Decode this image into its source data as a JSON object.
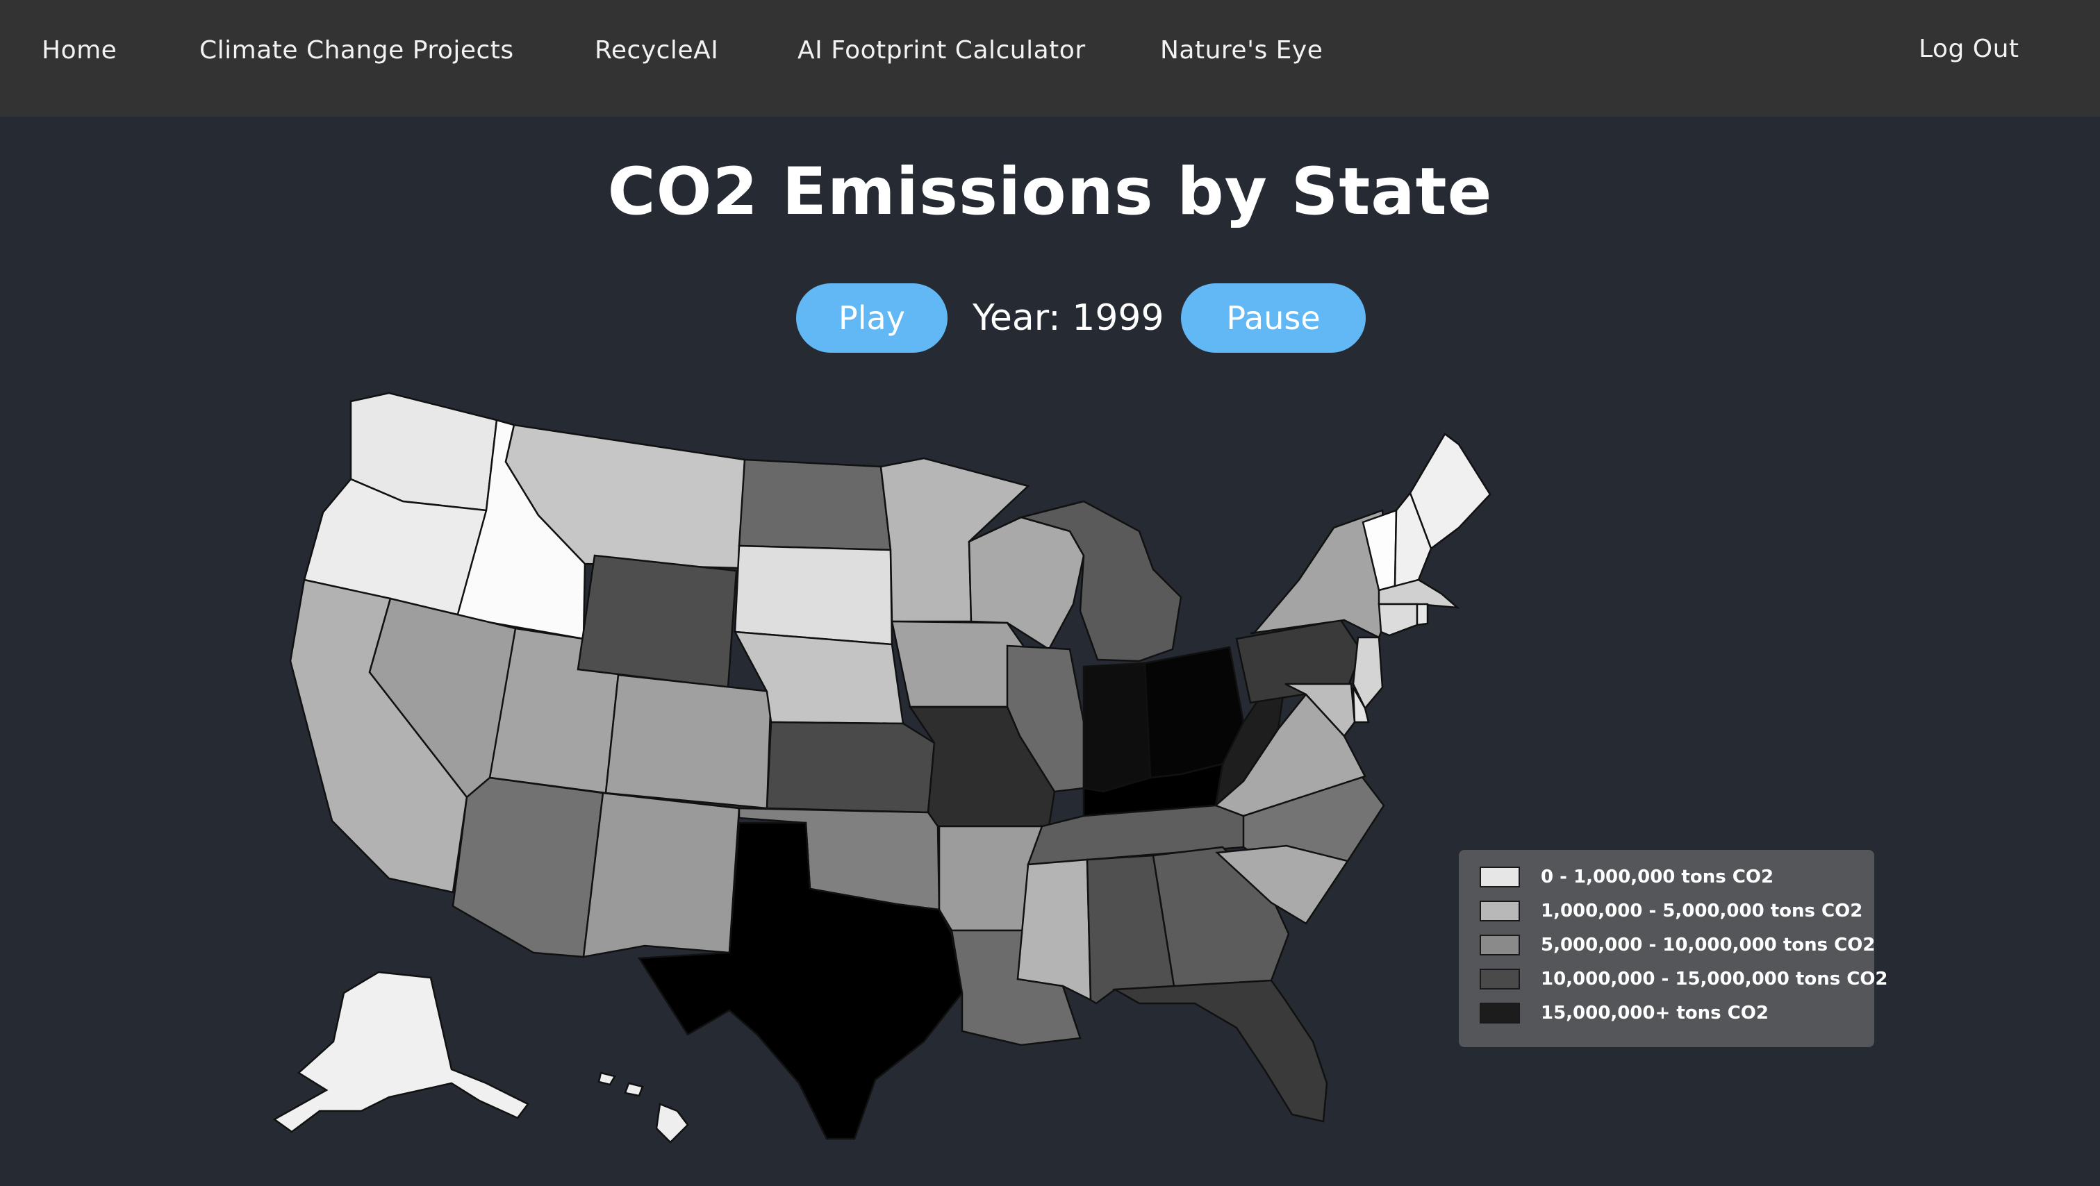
{
  "nav": {
    "home": "Home",
    "climate": "Climate Change Projects",
    "recycle": "RecycleAI",
    "footprint": "AI Footprint Calculator",
    "natures_eye": "Nature's Eye",
    "logout": "Log Out"
  },
  "page": {
    "title": "CO2 Emissions by State"
  },
  "controls": {
    "play_label": "Play",
    "year_label": "Year: 1999",
    "pause_label": "Pause",
    "year": 1999
  },
  "legend": {
    "items": [
      {
        "label": "0 - 1,000,000 tons CO2",
        "color": "#e6e6e6"
      },
      {
        "label": "1,000,000 - 5,000,000 tons CO2",
        "color": "#b8b8b8"
      },
      {
        "label": "5,000,000 - 10,000,000 tons CO2",
        "color": "#8a8a8a"
      },
      {
        "label": "10,000,000 - 15,000,000 tons CO2",
        "color": "#4a4a4a"
      },
      {
        "label": "15,000,000+ tons CO2",
        "color": "#1c1c1c"
      }
    ]
  },
  "colors": {
    "background": "#262a33",
    "navbar": "#333333",
    "button": "#62b8f5"
  },
  "map_states": [
    {
      "id": "WA",
      "fill": "#e8e8e8"
    },
    {
      "id": "OR",
      "fill": "#ececec"
    },
    {
      "id": "ID",
      "fill": "#fbfbfb"
    },
    {
      "id": "MT",
      "fill": "#c6c6c6"
    },
    {
      "id": "ND",
      "fill": "#696969"
    },
    {
      "id": "SD",
      "fill": "#dedede"
    },
    {
      "id": "MN",
      "fill": "#b6b6b6"
    },
    {
      "id": "WI",
      "fill": "#a9a9a9"
    },
    {
      "id": "MI",
      "fill": "#5a5a5a"
    },
    {
      "id": "CA",
      "fill": "#b2b2b2"
    },
    {
      "id": "NV",
      "fill": "#9e9e9e"
    },
    {
      "id": "UT",
      "fill": "#a4a4a4"
    },
    {
      "id": "WY",
      "fill": "#4e4e4e"
    },
    {
      "id": "CO",
      "fill": "#a0a0a0"
    },
    {
      "id": "NE",
      "fill": "#c4c4c4"
    },
    {
      "id": "IA",
      "fill": "#a2a2a2"
    },
    {
      "id": "IL",
      "fill": "#6a6a6a"
    },
    {
      "id": "IN",
      "fill": "#0e0e0e"
    },
    {
      "id": "OH",
      "fill": "#050505"
    },
    {
      "id": "KS",
      "fill": "#4a4a4a"
    },
    {
      "id": "MO",
      "fill": "#2e2e2e"
    },
    {
      "id": "KY",
      "fill": "#000000"
    },
    {
      "id": "WV",
      "fill": "#1e1e1e"
    },
    {
      "id": "AZ",
      "fill": "#727272"
    },
    {
      "id": "NM",
      "fill": "#9a9a9a"
    },
    {
      "id": "OK",
      "fill": "#808080"
    },
    {
      "id": "AR",
      "fill": "#9c9c9c"
    },
    {
      "id": "TN",
      "fill": "#5e5e5e"
    },
    {
      "id": "NC",
      "fill": "#747474"
    },
    {
      "id": "VA",
      "fill": "#a8a8a8"
    },
    {
      "id": "PA",
      "fill": "#3a3a3a"
    },
    {
      "id": "NY",
      "fill": "#a4a4a4"
    },
    {
      "id": "TX",
      "fill": "#000000"
    },
    {
      "id": "LA",
      "fill": "#6c6c6c"
    },
    {
      "id": "MS",
      "fill": "#b4b4b4"
    },
    {
      "id": "AL",
      "fill": "#505050"
    },
    {
      "id": "GA",
      "fill": "#5c5c5c"
    },
    {
      "id": "SC",
      "fill": "#aaaaaa"
    },
    {
      "id": "FL",
      "fill": "#3a3a3a"
    },
    {
      "id": "ME",
      "fill": "#f0f0f0"
    },
    {
      "id": "VT",
      "fill": "#fdfdfd"
    },
    {
      "id": "NH",
      "fill": "#f0f0f0"
    },
    {
      "id": "MA",
      "fill": "#d0d0d0"
    },
    {
      "id": "CT",
      "fill": "#dcdcdc"
    },
    {
      "id": "RI",
      "fill": "#e8e8e8"
    },
    {
      "id": "NJ",
      "fill": "#d4d4d4"
    },
    {
      "id": "DE",
      "fill": "#e4e4e4"
    },
    {
      "id": "MD",
      "fill": "#bcbcbc"
    },
    {
      "id": "AK",
      "fill": "#f0f0f0"
    },
    {
      "id": "HI",
      "fill": "#eeeeee"
    }
  ]
}
